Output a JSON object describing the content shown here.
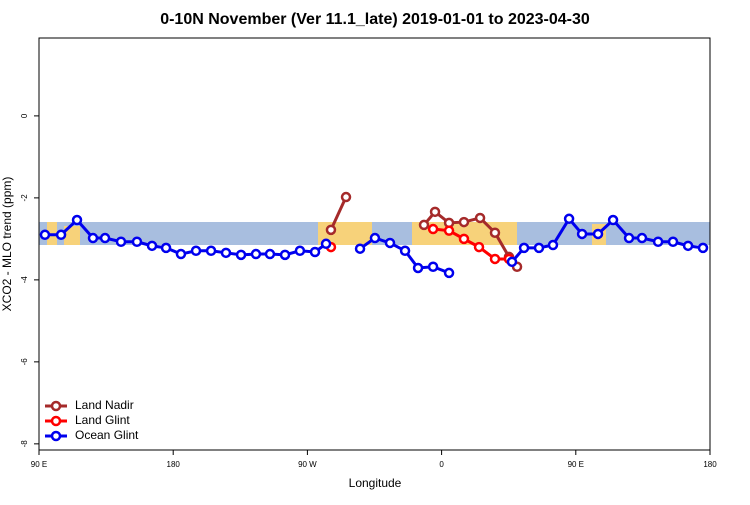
{
  "chart_data": {
    "type": "line",
    "title": "0-10N November (Ver 11.1_late)   2019-01-01 to 2023-04-30",
    "x_label": "Longitude",
    "y_label": "XCO2 - MLO trend (ppm)",
    "xlim": [
      90,
      540
    ],
    "ylim": [
      -8.15,
      1.9
    ],
    "xticks": [
      {
        "value": 90,
        "label": "90 E"
      },
      180,
      {
        "value": 270,
        "label": "90 W"
      },
      {
        "value": 360,
        "label": "0"
      },
      {
        "value": 450,
        "label": "90 E"
      },
      {
        "value": 540,
        "label": "180"
      }
    ],
    "yticks": [
      0,
      -2,
      -4,
      -6,
      -8
    ],
    "legend": "bottom-left",
    "series": [
      {
        "name": "Land Nadir",
        "color": "#a52a2a",
        "x": [
          285.8,
          295.9,
          null,
          348.2,
          355.6,
          365,
          375,
          385.8,
          395.8,
          405.2,
          410.6
        ],
        "values": [
          -2.78,
          -1.98,
          null,
          -2.66,
          -2.34,
          -2.61,
          -2.59,
          -2.49,
          -2.85,
          -3.44,
          -3.68
        ]
      },
      {
        "name": "Land Glint",
        "color": "#ff0000",
        "x": [
          285.8,
          null,
          354.3,
          365,
          375,
          385.1,
          395.8,
          405.2
        ],
        "values": [
          -3.2,
          null,
          -2.76,
          -2.8,
          -3.0,
          -3.2,
          -3.49,
          -3.49
        ]
      },
      {
        "name": "Ocean Glint",
        "color": "#0000ee",
        "x": [
          94,
          104.8,
          115.5,
          126.2,
          134.3,
          145,
          155.7,
          165.8,
          175.2,
          185.2,
          195.3,
          205.4,
          215.4,
          225.5,
          235.5,
          244.9,
          255,
          265,
          275.1,
          282.5,
          null,
          305.3,
          315.3,
          325.4,
          335.5,
          344.2,
          354.3,
          365,
          null,
          407.2,
          415.3,
          425.3,
          434.7,
          445.5,
          454.2,
          464.9,
          475,
          485.7,
          494.4,
          505.2,
          515.2,
          525.3,
          535.3
        ],
        "values": [
          -2.9,
          -2.9,
          -2.54,
          -2.98,
          -2.98,
          -3.07,
          -3.07,
          -3.17,
          -3.22,
          -3.37,
          -3.29,
          -3.29,
          -3.34,
          -3.39,
          -3.37,
          -3.37,
          -3.39,
          -3.29,
          -3.32,
          -3.12,
          null,
          -3.24,
          -2.98,
          -3.1,
          -3.29,
          -3.71,
          -3.68,
          -3.83,
          null,
          -3.56,
          -3.22,
          -3.22,
          -3.15,
          -2.51,
          -2.88,
          -2.88,
          -2.54,
          -2.98,
          -2.98,
          -3.07,
          -3.07,
          -3.17,
          -3.22
        ]
      }
    ]
  }
}
